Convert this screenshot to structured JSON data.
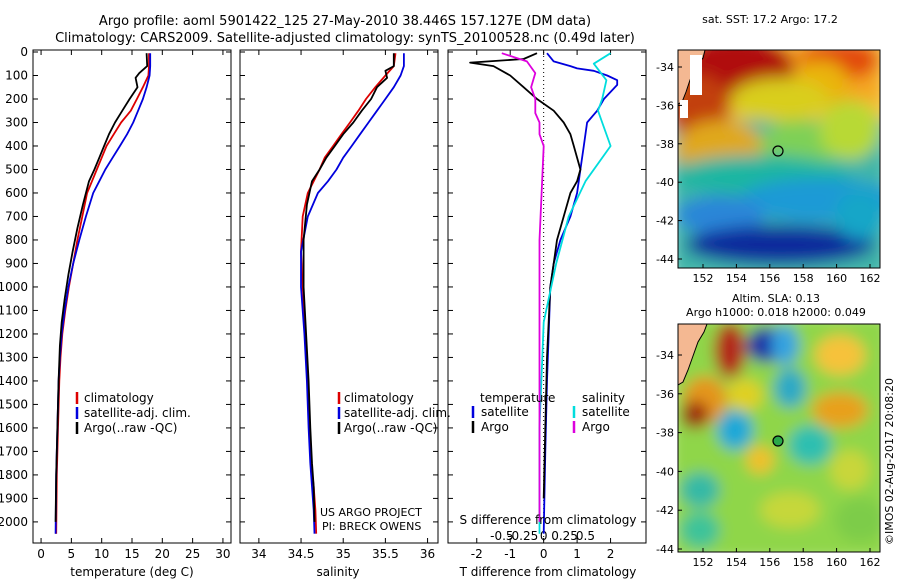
{
  "header": {
    "line1": "Argo profile: aoml 5901422_125 27-May-2010 38.446S 157.127E (DM data)",
    "line2": "Climatology: CARS2009. Satellite-adjusted climatology: synTS_20100528.nc (0.49d later)"
  },
  "colors": {
    "climatology": "#dd0000",
    "satellite": "#0000dd",
    "argo": "#000000",
    "sat_salinity": "#00dddd",
    "argo_salinity": "#dd00dd"
  },
  "chart_data": [
    {
      "type": "line",
      "id": "temperature",
      "xlabel": "temperature (deg C)",
      "ylabel": "",
      "xlim": [
        -1,
        31
      ],
      "ylim": [
        0,
        2060
      ],
      "y_reversed": true,
      "x_ticks": [
        "0",
        "5",
        "10",
        "15",
        "20",
        "25",
        "30"
      ],
      "x_tick_values": [
        0,
        5,
        10,
        15,
        20,
        25,
        30
      ],
      "y_ticks": [
        "0",
        "100",
        "200",
        "300",
        "400",
        "500",
        "600",
        "700",
        "800",
        "900",
        "1000",
        "1100",
        "1200",
        "1300",
        "1400",
        "1500",
        "1600",
        "1700",
        "1800",
        "1900",
        "2000"
      ],
      "y_tick_values": [
        0,
        100,
        200,
        300,
        400,
        500,
        600,
        700,
        800,
        900,
        1000,
        1100,
        1200,
        1300,
        1400,
        1500,
        1600,
        1700,
        1800,
        1900,
        2000
      ],
      "legend": [
        "climatology",
        "satellite-adj. clim.",
        "Argo(..raw -QC)"
      ],
      "series": [
        {
          "name": "climatology",
          "color": "#dd0000",
          "x": [
            17.8,
            17.8,
            17.7,
            16.8,
            15.8,
            14.8,
            13.2,
            12.0,
            10.8,
            10.0,
            9.2,
            8.4,
            7.6,
            6.8,
            6.0,
            5.3,
            4.6,
            4.0,
            3.5,
            3.2,
            3.0,
            2.8,
            2.6,
            2.5
          ],
          "y": [
            5,
            60,
            100,
            150,
            200,
            250,
            300,
            350,
            400,
            450,
            500,
            550,
            600,
            700,
            800,
            900,
            1000,
            1100,
            1200,
            1300,
            1400,
            1600,
            1800,
            2050
          ]
        },
        {
          "name": "satellite-adj. clim.",
          "color": "#0000dd",
          "x": [
            18.0,
            18.0,
            17.9,
            17.4,
            16.8,
            16.0,
            15.2,
            14.2,
            13.0,
            11.8,
            10.6,
            9.6,
            8.6,
            7.4,
            6.3,
            5.3,
            4.5,
            3.9,
            3.4,
            3.1,
            2.9,
            2.7,
            2.5,
            2.4
          ],
          "y": [
            5,
            60,
            100,
            150,
            200,
            250,
            300,
            350,
            400,
            450,
            500,
            550,
            600,
            700,
            800,
            900,
            1000,
            1100,
            1200,
            1300,
            1400,
            1600,
            1800,
            2050
          ]
        },
        {
          "name": "Argo(..raw -QC)",
          "color": "#000000",
          "x": [
            17.4,
            17.5,
            16.2,
            15.6,
            15.9,
            14.6,
            13.4,
            12.2,
            11.2,
            10.4,
            9.6,
            8.8,
            7.9,
            6.9,
            6.0,
            5.2,
            4.5,
            3.9,
            3.4,
            3.1,
            2.9,
            2.7,
            2.5,
            2.4
          ],
          "y": [
            5,
            60,
            90,
            110,
            150,
            200,
            250,
            300,
            350,
            400,
            450,
            500,
            550,
            650,
            750,
            850,
            950,
            1050,
            1150,
            1250,
            1400,
            1600,
            1800,
            2000
          ]
        }
      ]
    },
    {
      "type": "line",
      "id": "salinity",
      "xlabel": "salinity",
      "xlim": [
        33.8,
        36.1
      ],
      "ylim": [
        0,
        2060
      ],
      "y_reversed": true,
      "x_ticks": [
        "34",
        "34.5",
        "35",
        "35.5",
        "36"
      ],
      "x_tick_values": [
        34,
        34.5,
        35,
        35.5,
        36
      ],
      "legend": [
        "climatology",
        "satellite-adj. clim.",
        "Argo(..raw -QC)"
      ],
      "annotations": [
        "US ARGO PROJECT",
        "PI: BRECK OWENS"
      ],
      "series": [
        {
          "name": "climatology",
          "color": "#dd0000",
          "x": [
            35.62,
            35.6,
            35.5,
            35.38,
            35.27,
            35.18,
            35.08,
            34.98,
            34.88,
            34.78,
            34.72,
            34.65,
            34.58,
            34.52,
            34.5,
            34.52,
            34.55,
            34.58,
            34.6,
            34.62,
            34.65,
            34.67,
            34.68
          ],
          "y": [
            5,
            60,
            100,
            150,
            200,
            250,
            300,
            350,
            400,
            450,
            500,
            550,
            600,
            700,
            850,
            1000,
            1200,
            1400,
            1600,
            1750,
            1850,
            1950,
            2050
          ]
        },
        {
          "name": "satellite-adj. clim.",
          "color": "#0000dd",
          "x": [
            35.72,
            35.72,
            35.68,
            35.6,
            35.5,
            35.4,
            35.3,
            35.2,
            35.1,
            35.0,
            34.92,
            34.82,
            34.7,
            34.58,
            34.5,
            34.5,
            34.54,
            34.57,
            34.59,
            34.61,
            34.63,
            34.65,
            34.66
          ],
          "y": [
            5,
            60,
            100,
            150,
            200,
            250,
            300,
            350,
            400,
            450,
            500,
            550,
            600,
            700,
            850,
            1000,
            1200,
            1400,
            1600,
            1750,
            1850,
            1950,
            2050
          ]
        },
        {
          "name": "Argo(..raw -QC)",
          "color": "#000000",
          "x": [
            35.6,
            35.6,
            35.5,
            35.52,
            35.4,
            35.33,
            35.22,
            35.12,
            35.0,
            34.9,
            34.8,
            34.72,
            34.63,
            34.57,
            34.53,
            34.53,
            34.56,
            34.59,
            34.61,
            34.63,
            34.65,
            34.66
          ],
          "y": [
            5,
            60,
            80,
            110,
            150,
            200,
            250,
            300,
            350,
            400,
            450,
            500,
            550,
            650,
            800,
            1000,
            1200,
            1400,
            1600,
            1750,
            1850,
            2000
          ]
        }
      ]
    },
    {
      "type": "line",
      "id": "differences",
      "xlabel": "T difference from climatology",
      "xlabel2": "S difference from climatology",
      "xlim": [
        -2.8,
        3.0
      ],
      "x_ticks": [
        "-2",
        "-1",
        "0",
        "1",
        "2"
      ],
      "x_tick_values": [
        -2,
        -1,
        0,
        1,
        2
      ],
      "s_ticks": [
        "-0.5",
        "-0.25",
        "0",
        "0.25",
        "0.5"
      ],
      "ylim": [
        0,
        2060
      ],
      "y_reversed": true,
      "legend_headers": [
        "temperature",
        "salinity"
      ],
      "legend": [
        "satellite",
        "Argo",
        "satellite",
        "Argo"
      ],
      "series": [
        {
          "name": "temperature satellite",
          "color": "#0000dd",
          "x": [
            0.1,
            0.3,
            0.8,
            1.0,
            1.5,
            1.9,
            2.2,
            2.2,
            2.0,
            1.8,
            1.6,
            1.3,
            1.2,
            1.1,
            1.0,
            0.8,
            0.5,
            0.3,
            0.2,
            0.15,
            0.1,
            0.05,
            0.0
          ],
          "y": [
            5,
            40,
            60,
            70,
            80,
            100,
            120,
            140,
            170,
            200,
            250,
            300,
            400,
            500,
            600,
            700,
            800,
            900,
            1000,
            1200,
            1400,
            1700,
            2050
          ]
        },
        {
          "name": "temperature Argo",
          "color": "#000000",
          "x": [
            -0.2,
            -0.6,
            -2.2,
            -1.5,
            -1.0,
            -0.6,
            -0.2,
            0.3,
            0.6,
            0.8,
            0.9,
            1.0,
            1.1,
            1.0,
            0.8,
            0.6,
            0.4,
            0.3,
            0.2,
            0.1,
            0.05,
            0.0
          ],
          "y": [
            5,
            30,
            45,
            60,
            100,
            150,
            200,
            250,
            300,
            350,
            400,
            450,
            500,
            550,
            600,
            700,
            800,
            900,
            1000,
            1300,
            1600,
            1900
          ]
        },
        {
          "name": "salinity satellite",
          "color": "#00dddd",
          "x": [
            0.8,
            0.6,
            0.75,
            0.7,
            0.65,
            0.7,
            0.8,
            0.5,
            0.3,
            0.15,
            0.0,
            -0.05,
            -0.05
          ],
          "y": [
            5,
            50,
            120,
            200,
            250,
            300,
            400,
            550,
            700,
            900,
            1150,
            1600,
            2050
          ]
        },
        {
          "name": "salinity Argo",
          "color": "#dd00dd",
          "x": [
            -0.5,
            -0.2,
            -0.1,
            -0.15,
            -0.1,
            -0.1,
            -0.05,
            -0.05,
            0.0,
            -0.05,
            -0.05,
            -0.05
          ],
          "y": [
            5,
            40,
            90,
            150,
            200,
            260,
            300,
            350,
            400,
            800,
            1500,
            2000
          ]
        }
      ]
    },
    {
      "type": "heatmap",
      "id": "sst_map",
      "title": "sat. SST: 17.2  Argo: 17.2",
      "x_ticks": [
        "152",
        "154",
        "156",
        "158",
        "160",
        "162"
      ],
      "y_ticks": [
        "-34",
        "-36",
        "-38",
        "-40",
        "-42",
        "-44"
      ],
      "marker": {
        "lon": 157.1,
        "lat": -38.4
      }
    },
    {
      "type": "heatmap",
      "id": "sla_map",
      "title_line1": "Altim. SLA: 0.13",
      "title_line2": "Argo h1000: 0.018 h2000: 0.049",
      "x_ticks": [
        "152",
        "154",
        "156",
        "158",
        "160",
        "162"
      ],
      "y_ticks": [
        "-34",
        "-36",
        "-38",
        "-40",
        "-42",
        "-44"
      ],
      "marker": {
        "lon": 157.1,
        "lat": -38.4
      }
    }
  ],
  "footer": {
    "credit": "©IMOS 02-Aug-2017 20:08:20"
  }
}
